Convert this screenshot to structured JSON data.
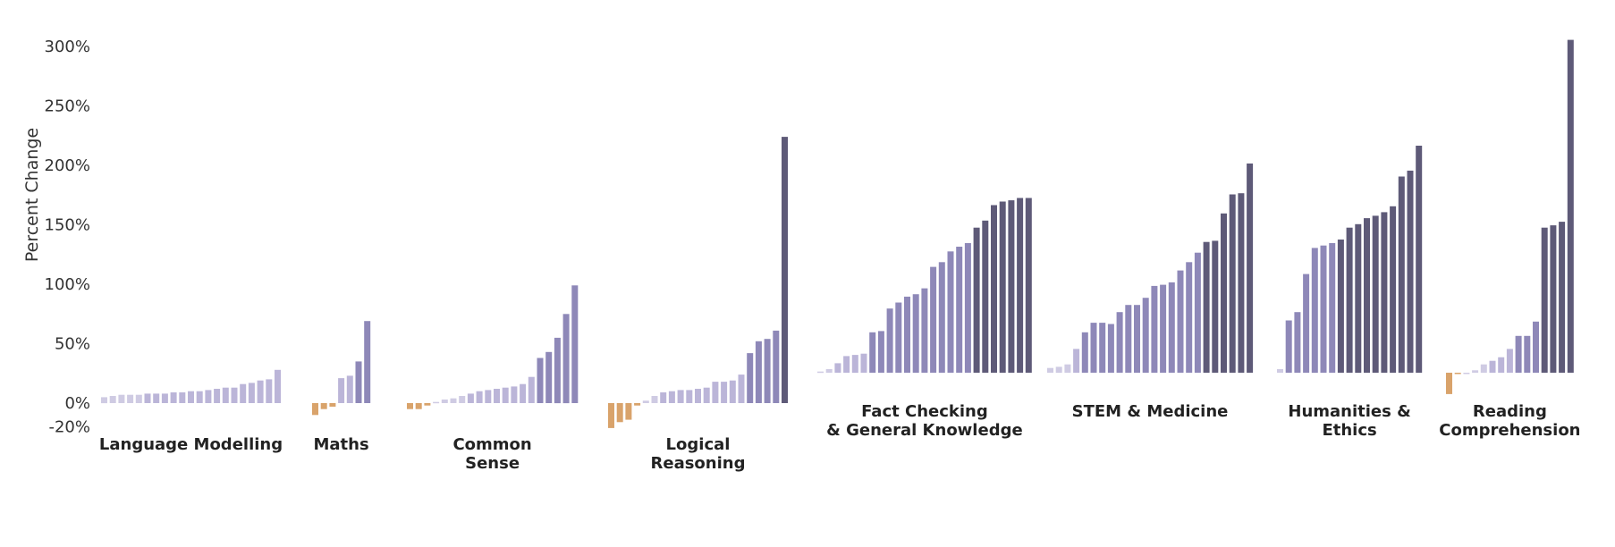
{
  "chart_data": {
    "type": "bar",
    "title": "",
    "ylabel": "Percent Change",
    "ylim": [
      -20,
      310
    ],
    "y_ticks": [
      {
        "value": 300,
        "label": "300%"
      },
      {
        "value": 250,
        "label": "250%"
      },
      {
        "value": 200,
        "label": "200%"
      },
      {
        "value": 150,
        "label": "150%"
      },
      {
        "value": 100,
        "label": "100%"
      },
      {
        "value": 50,
        "label": "50%"
      },
      {
        "value": 0,
        "label": "0%"
      },
      {
        "value": -20,
        "label": "-20%"
      }
    ],
    "grid": false,
    "colors": {
      "negative": "#D9A36B",
      "very_light": "#CFCBE3",
      "light": "#BBB5D8",
      "medium": "#8E88B8",
      "dark": "#5E5A78"
    },
    "groups": [
      {
        "name": "Language Modelling",
        "label_lines": [
          "Language Modelling"
        ],
        "label_row": "low",
        "values": [
          5,
          6,
          7,
          7,
          7,
          8,
          8,
          8,
          9,
          9,
          10,
          10,
          11,
          12,
          13,
          13,
          16,
          17,
          19,
          20,
          28
        ]
      },
      {
        "name": "Maths",
        "label_lines": [
          "Maths"
        ],
        "label_row": "low",
        "values": [
          -10,
          -5,
          -3,
          21,
          23,
          35,
          69
        ]
      },
      {
        "name": "Common Sense",
        "label_lines": [
          "Common",
          "Sense"
        ],
        "label_row": "low",
        "values": [
          -5,
          -5,
          -2,
          1,
          3,
          4,
          6,
          8,
          10,
          11,
          12,
          13,
          14,
          16,
          22,
          38,
          43,
          55,
          75,
          99
        ]
      },
      {
        "name": "Logical Reasoning",
        "label_lines": [
          "Logical",
          "Reasoning"
        ],
        "label_row": "low",
        "values": [
          -21,
          -16,
          -14,
          -2,
          2,
          6,
          9,
          10,
          11,
          11,
          12,
          13,
          18,
          18,
          19,
          24,
          42,
          52,
          54,
          61,
          224
        ]
      },
      {
        "name": "Fact Checking & General Knowledge",
        "label_lines": [
          "Fact Checking",
          "& General Knowledge"
        ],
        "label_row": "high",
        "values": [
          1,
          3,
          8,
          14,
          15,
          16,
          34,
          35,
          54,
          59,
          64,
          66,
          71,
          89,
          93,
          102,
          106,
          109,
          122,
          128,
          141,
          144,
          145,
          147,
          147
        ]
      },
      {
        "name": "STEM & Medicine",
        "label_lines": [
          "STEM & Medicine"
        ],
        "label_row": "high",
        "values": [
          4,
          5,
          7,
          20,
          34,
          42,
          42,
          41,
          51,
          57,
          57,
          63,
          73,
          74,
          76,
          86,
          93,
          101,
          110,
          111,
          134,
          150,
          151,
          176
        ]
      },
      {
        "name": "Humanities & Ethics",
        "label_lines": [
          "Humanities &",
          "Ethics"
        ],
        "label_row": "high",
        "values": [
          3,
          44,
          51,
          83,
          105,
          107,
          109,
          112,
          122,
          125,
          130,
          132,
          135,
          140,
          165,
          170,
          191
        ]
      },
      {
        "name": "Reading Comprehension",
        "label_lines": [
          "Reading",
          "Comprehension"
        ],
        "label_row": "high",
        "values": [
          -18,
          -1,
          0,
          2,
          7,
          10,
          13,
          20,
          31,
          31,
          43,
          122,
          124,
          127,
          280
        ]
      }
    ]
  }
}
